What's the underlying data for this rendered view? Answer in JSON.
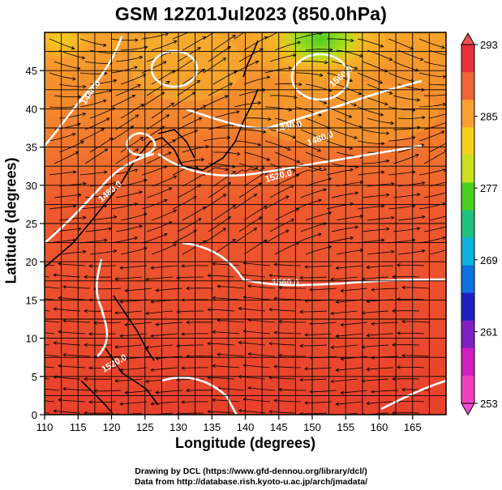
{
  "title": "GSM 12Z01Jul2023 (850.0hPa)",
  "xaxis": {
    "label": "Longitude (degrees)",
    "ticks": [
      "110",
      "115",
      "120",
      "125",
      "130",
      "135",
      "140",
      "145",
      "150",
      "155",
      "160",
      "165"
    ]
  },
  "yaxis": {
    "label": "Latitude  (degrees)",
    "ticks": [
      "0",
      "5",
      "10",
      "15",
      "20",
      "25",
      "30",
      "35",
      "40",
      "45"
    ]
  },
  "colorbar": {
    "ticks": [
      "293",
      "285",
      "277",
      "269",
      "261",
      "253"
    ],
    "colors": [
      "#e8303a",
      "#f0663a",
      "#f8a030",
      "#f4d020",
      "#c8e020",
      "#4cd020",
      "#20c080",
      "#10b0e0",
      "#1070e0",
      "#2020c0",
      "#8020c0",
      "#d020c0",
      "#f040c0"
    ]
  },
  "contour_labels": [
    "1440.0",
    "1440.0",
    "1480.0",
    "1480.0",
    "1520.0",
    "1560.0",
    "1520.0",
    "1560.0"
  ],
  "credits": {
    "line1": "Drawing by DCL (https://www.gfd-dennou.org/library/dcl/)",
    "line2": "Data from http://database.rish.kyoto-u.ac.jp/arch/jmadata/"
  }
}
